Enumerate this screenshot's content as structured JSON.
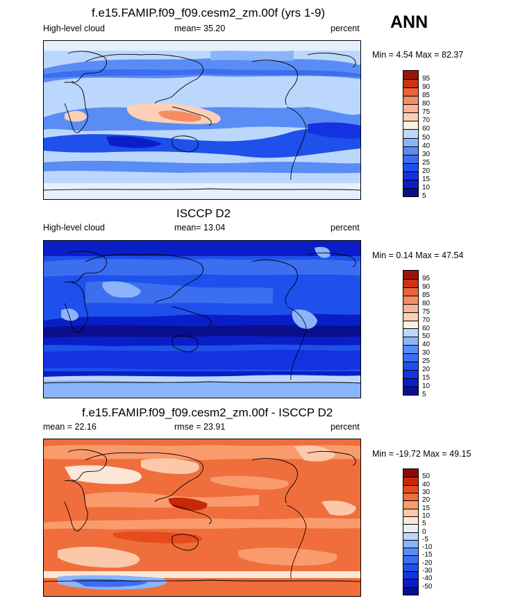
{
  "season": "ANN",
  "chart_data": [
    {
      "type": "heatmap",
      "title": "f.e15.FAMIP.f09_f09.cesm2_zm.00f (yrs 1-9)",
      "left_label": "High-level cloud",
      "center_label": "mean=  35.20",
      "right_label": "percent",
      "minmax": "Min =   4.54 Max =  82.37",
      "color_levels": [
        "5",
        "10",
        "15",
        "20",
        "25",
        "30",
        "40",
        "50",
        "60",
        "70",
        "75",
        "80",
        "85",
        "90",
        "95"
      ],
      "colors": [
        "#0a0f8c",
        "#0a1ec8",
        "#1432e1",
        "#1e50eb",
        "#3c6ef0",
        "#5a8cf5",
        "#8cb4fa",
        "#bcd7fc",
        "#fbf0e6",
        "#fcd0b8",
        "#fab496",
        "#f58c64",
        "#e8643c",
        "#cd3214",
        "#9b1406"
      ]
    },
    {
      "type": "heatmap",
      "title": "ISCCP D2",
      "left_label": "High-level cloud",
      "center_label": "mean=  13.04",
      "right_label": "percent",
      "minmax": "Min =   0.14 Max =  47.54",
      "color_levels": [
        "5",
        "10",
        "15",
        "20",
        "25",
        "30",
        "40",
        "50",
        "60",
        "70",
        "75",
        "80",
        "85",
        "90",
        "95"
      ],
      "colors": [
        "#0a0f8c",
        "#0a1ec8",
        "#1432e1",
        "#1e50eb",
        "#3c6ef0",
        "#5a8cf5",
        "#8cb4fa",
        "#bcd7fc",
        "#fbf0e6",
        "#fcd0b8",
        "#fab496",
        "#f58c64",
        "#e8643c",
        "#cd3214",
        "#9b1406"
      ]
    },
    {
      "type": "heatmap",
      "title": "f.e15.FAMIP.f09_f09.cesm2_zm.00f - ISCCP D2",
      "left_label": "mean =  22.16",
      "center_label": "rmse =  23.91",
      "right_label": "percent",
      "minmax": "Min = -19.72 Max =  49.15",
      "color_levels": [
        "-50",
        "-40",
        "-30",
        "-20",
        "-15",
        "-10",
        "-5",
        "0",
        "5",
        "10",
        "15",
        "20",
        "30",
        "40",
        "50"
      ],
      "colors": [
        "#0a0f8c",
        "#0a1ec8",
        "#1432e1",
        "#1e50eb",
        "#3c6ef0",
        "#5a8cf5",
        "#8cb4fa",
        "#bcd7fc",
        "#e8eefa",
        "#fbe6d8",
        "#fcc8aa",
        "#fa9b6e",
        "#f06e3c",
        "#e64b1e",
        "#c8280a",
        "#8c0a05"
      ]
    }
  ]
}
